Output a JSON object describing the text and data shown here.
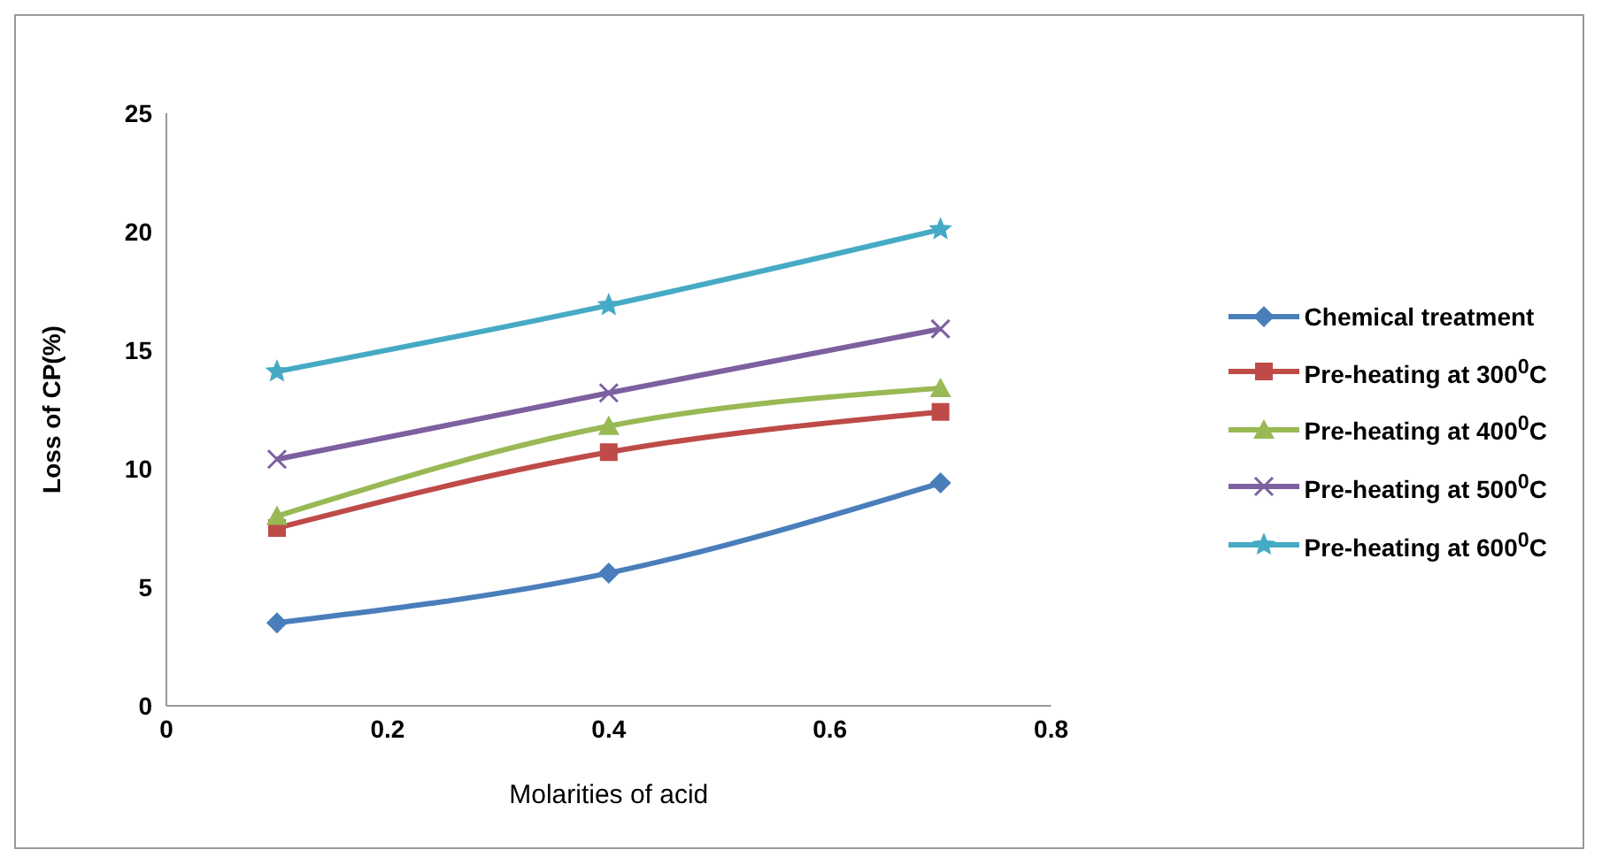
{
  "chart_data": {
    "type": "line",
    "xlabel": "Molarities of acid",
    "ylabel": "Loss of CP(%)",
    "xlim": [
      0,
      0.8
    ],
    "xticks": [
      0,
      0.2,
      0.4,
      0.6,
      0.8
    ],
    "ylim": [
      0,
      25
    ],
    "yticks": [
      0,
      5,
      10,
      15,
      20,
      25
    ],
    "grid": false,
    "legend": "right",
    "x": [
      0.1,
      0.4,
      0.7
    ],
    "series": [
      {
        "name": "Chemical treatment",
        "color": "#4a7ebb",
        "marker": "diamond",
        "values": [
          3.5,
          5.6,
          9.4
        ]
      },
      {
        "name": "Pre-heating at 300$^{0}$C",
        "color": "#be4b48",
        "marker": "square",
        "values": [
          7.5,
          10.7,
          12.4
        ]
      },
      {
        "name": "Pre-heating at 400$^{0}$C",
        "color": "#98b954",
        "marker": "triangle",
        "values": [
          8.0,
          11.8,
          13.4
        ]
      },
      {
        "name": "Pre-heating at 500$^{0}$C",
        "color": "#7d60a0",
        "marker": "cross",
        "values": [
          10.4,
          13.2,
          15.9
        ]
      },
      {
        "name": "Pre-heating at 600$^{0}$C",
        "color": "#46aac5",
        "marker": "star",
        "values": [
          14.1,
          16.9,
          20.1
        ]
      }
    ]
  }
}
